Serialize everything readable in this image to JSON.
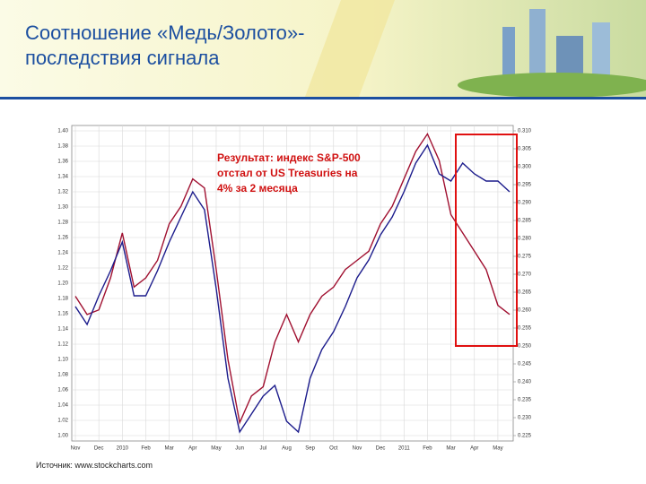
{
  "header": {
    "title": "Соотношение «Медь/Золото»-",
    "title_line2": "последствия сигнала"
  },
  "source": "Источник: www.stockcharts.com",
  "chart_data": {
    "type": "line",
    "annotation": [
      "Результат: индекс S&P-500",
      "отстал от US Treasuries на",
      "4% за 2 месяца"
    ],
    "categories": [
      "Nov",
      null,
      "Dec",
      null,
      "2010",
      null,
      "Feb",
      null,
      "Mar",
      null,
      "Apr",
      null,
      "May",
      null,
      "Jun",
      null,
      "Jul",
      null,
      "Aug",
      null,
      "Sep",
      null,
      "Oct",
      null,
      "Nov",
      null,
      "Dec",
      null,
      "2011",
      null,
      "Feb",
      null,
      "Mar",
      null,
      "Apr",
      null,
      "May",
      null
    ],
    "series": [
      {
        "color": "#a01030",
        "values": [
          1.183,
          1.159,
          1.165,
          1.207,
          1.266,
          1.195,
          1.207,
          1.23,
          1.278,
          1.301,
          1.337,
          1.325,
          1.218,
          1.1,
          1.017,
          1.052,
          1.064,
          1.123,
          1.159,
          1.123,
          1.159,
          1.183,
          1.195,
          1.218,
          1.23,
          1.242,
          1.278,
          1.301,
          1.337,
          1.373,
          1.396,
          1.361,
          1.29,
          1.266,
          1.242,
          1.218,
          1.171,
          1.159
        ]
      },
      {
        "color": "#1c1c8c",
        "axis": "y2",
        "values": [
          0.261,
          0.256,
          0.264,
          0.271,
          0.279,
          0.264,
          0.264,
          0.271,
          0.279,
          0.286,
          0.293,
          0.288,
          0.266,
          0.241,
          0.226,
          0.231,
          0.236,
          0.239,
          0.229,
          0.226,
          0.241,
          0.249,
          0.254,
          0.261,
          0.269,
          0.274,
          0.281,
          0.286,
          0.293,
          0.301,
          0.306,
          0.298,
          0.296,
          0.301,
          0.298,
          0.296,
          0.296,
          0.293
        ]
      }
    ],
    "ylim": [
      1.0,
      1.4
    ],
    "yticks": [
      {
        "value": 1.0,
        "label": "1.00"
      },
      {
        "value": 1.02,
        "label": "1.02"
      },
      {
        "value": 1.04,
        "label": "1.04"
      },
      {
        "value": 1.06,
        "label": "1.06"
      },
      {
        "value": 1.08,
        "label": "1.08"
      },
      {
        "value": 1.1,
        "label": "1.10"
      },
      {
        "value": 1.12,
        "label": "1.12"
      },
      {
        "value": 1.14,
        "label": "1.14"
      },
      {
        "value": 1.16,
        "label": "1.16"
      },
      {
        "value": 1.18,
        "label": "1.18"
      },
      {
        "value": 1.2,
        "label": "1.20"
      },
      {
        "value": 1.22,
        "label": "1.22"
      },
      {
        "value": 1.24,
        "label": "1.24"
      },
      {
        "value": 1.26,
        "label": "1.26"
      },
      {
        "value": 1.28,
        "label": "1.28"
      },
      {
        "value": 1.3,
        "label": "1.30"
      },
      {
        "value": 1.32,
        "label": "1.32"
      },
      {
        "value": 1.34,
        "label": "1.34"
      },
      {
        "value": 1.36,
        "label": "1.36"
      },
      {
        "value": 1.38,
        "label": "1.38"
      },
      {
        "value": 1.4,
        "label": "1.40"
      }
    ],
    "y2lim": [
      0.225,
      0.31
    ],
    "y2ticks": [
      {
        "value": 0.225,
        "label": "0.225"
      },
      {
        "value": 0.23,
        "label": "0.230"
      },
      {
        "value": 0.235,
        "label": "0.235"
      },
      {
        "value": 0.24,
        "label": "0.240"
      },
      {
        "value": 0.245,
        "label": "0.245"
      },
      {
        "value": 0.25,
        "label": "0.250"
      },
      {
        "value": 0.255,
        "label": "0.255"
      },
      {
        "value": 0.26,
        "label": "0.260"
      },
      {
        "value": 0.265,
        "label": "0.265"
      },
      {
        "value": 0.27,
        "label": "0.270"
      },
      {
        "value": 0.275,
        "label": "0.275"
      },
      {
        "value": 0.28,
        "label": "0.280"
      },
      {
        "value": 0.285,
        "label": "0.285"
      },
      {
        "value": 0.29,
        "label": "0.290"
      },
      {
        "value": 0.295,
        "label": "0.295"
      },
      {
        "value": 0.3,
        "label": "0.300"
      },
      {
        "value": 0.305,
        "label": "0.305"
      },
      {
        "value": 0.31,
        "label": "0.310"
      }
    ],
    "grid": true
  }
}
